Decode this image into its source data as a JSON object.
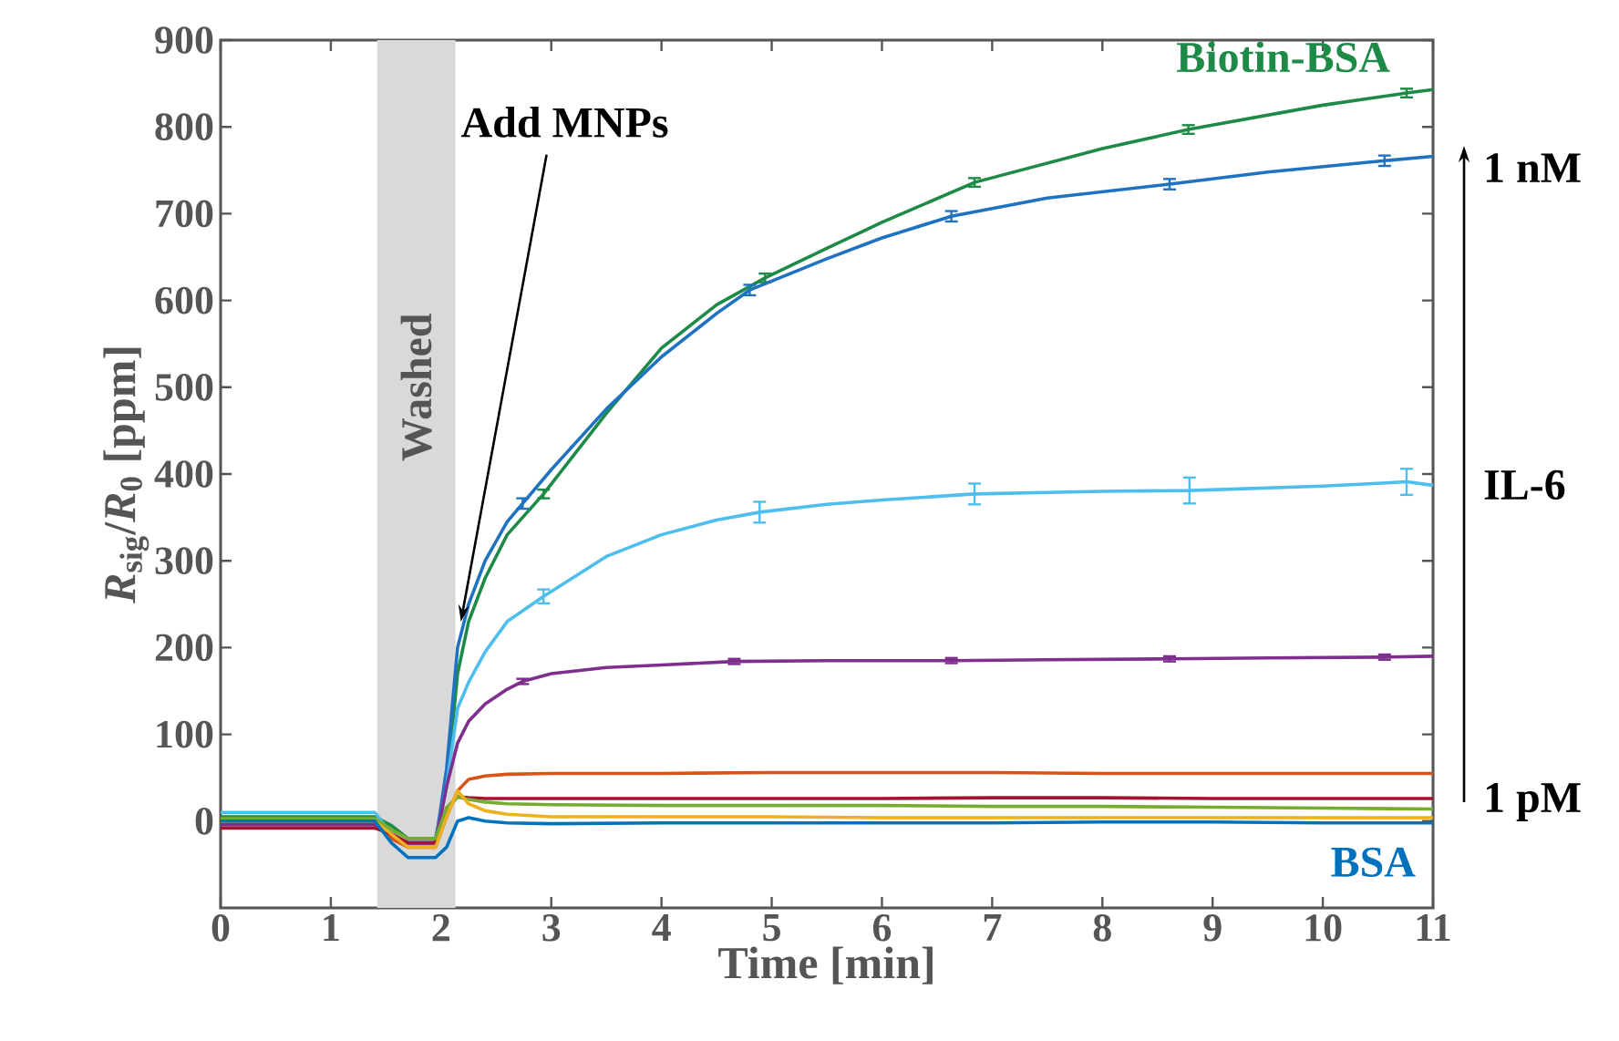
{
  "chart_data": {
    "type": "line",
    "xlabel": "Time [min]",
    "ylabel": "*R*$_{sig}$/*R*$_{0}$ [ppm]",
    "xlim": [
      0,
      11
    ],
    "ylim": [
      -100,
      900
    ],
    "xticks": [
      0,
      1,
      2,
      3,
      4,
      5,
      6,
      7,
      8,
      9,
      10,
      11
    ],
    "yticks": [
      0,
      100,
      200,
      300,
      400,
      500,
      600,
      700,
      800,
      900
    ],
    "grid": false,
    "legend": false,
    "marker": "none",
    "line_style": "solid",
    "bands": [
      {
        "axis": "x",
        "from": 1.42,
        "to": 2.13,
        "label": "Washed",
        "color": "#d9d9d9"
      }
    ],
    "annotations": [
      {
        "text": "Add MNPs",
        "x": 2.18,
        "y": 230
      },
      "1 nM",
      "IL-6",
      "1 pM"
    ],
    "series": [
      {
        "name": "Biotin-BSA",
        "color": "#1e8a47",
        "x": [
          0,
          1,
          1.4,
          1.55,
          1.7,
          1.95,
          2.05,
          2.15,
          2.25,
          2.4,
          2.6,
          2.93,
          3.5,
          4,
          4.5,
          4.94,
          5.5,
          6,
          6.84,
          8,
          8.78,
          10,
          10.76,
          11
        ],
        "values": [
          5,
          5,
          5,
          -5,
          -20,
          -20,
          40,
          170,
          230,
          280,
          330,
          377,
          470,
          545,
          595,
          626,
          660,
          690,
          736,
          775,
          797,
          825,
          839,
          843
        ],
        "errors": [
          null,
          null,
          null,
          null,
          null,
          null,
          null,
          null,
          null,
          null,
          null,
          5,
          null,
          null,
          null,
          5,
          null,
          null,
          5,
          null,
          5,
          null,
          5,
          null
        ]
      },
      {
        "color": "#1f72c0",
        "x": [
          0,
          1,
          1.4,
          1.55,
          1.7,
          1.95,
          2.05,
          2.15,
          2.25,
          2.4,
          2.6,
          2.74,
          3,
          3.5,
          4,
          4.5,
          4.8,
          5.5,
          6,
          6.63,
          7.5,
          8.61,
          9.5,
          10.56,
          11
        ],
        "values": [
          0,
          0,
          0,
          -15,
          -25,
          -25,
          60,
          200,
          250,
          300,
          345,
          366,
          405,
          475,
          535,
          585,
          612,
          648,
          672,
          697,
          718,
          734,
          748,
          761,
          766
        ],
        "errors": [
          null,
          null,
          null,
          null,
          null,
          null,
          null,
          null,
          null,
          null,
          null,
          6,
          null,
          null,
          null,
          null,
          6,
          null,
          null,
          6,
          null,
          6,
          null,
          6,
          null
        ]
      },
      {
        "color": "#4dbeee",
        "x": [
          0,
          1,
          1.4,
          1.55,
          1.7,
          1.95,
          2.05,
          2.15,
          2.25,
          2.4,
          2.6,
          2.93,
          3.5,
          4,
          4.5,
          4.89,
          5.5,
          6,
          6.84,
          8,
          8.79,
          10,
          10.76,
          11
        ],
        "values": [
          10,
          10,
          10,
          -15,
          -25,
          -25,
          40,
          130,
          160,
          195,
          230,
          259,
          305,
          330,
          347,
          356,
          365,
          370,
          377,
          380,
          381,
          386,
          391,
          387
        ],
        "errors": [
          null,
          null,
          null,
          null,
          null,
          null,
          null,
          null,
          null,
          null,
          null,
          8,
          null,
          null,
          null,
          12,
          null,
          null,
          12,
          null,
          15,
          null,
          15,
          null
        ]
      },
      {
        "color": "#7e2f8e",
        "x": [
          0,
          1,
          1.4,
          1.55,
          1.7,
          1.95,
          2.05,
          2.15,
          2.25,
          2.4,
          2.6,
          2.74,
          3,
          3.5,
          4,
          4.66,
          5.5,
          6.63,
          7.5,
          8.61,
          9.5,
          10.56,
          11
        ],
        "values": [
          -4,
          -4,
          -4,
          -15,
          -25,
          -25,
          40,
          90,
          115,
          135,
          152,
          161,
          170,
          177,
          180,
          184,
          185,
          185,
          186,
          187,
          188,
          189,
          190
        ],
        "errors": [
          null,
          null,
          null,
          null,
          null,
          null,
          null,
          null,
          null,
          null,
          null,
          3,
          null,
          null,
          null,
          3,
          null,
          3,
          null,
          3,
          null,
          3,
          null
        ]
      },
      {
        "color": "#d95319",
        "x": [
          0,
          1,
          1.4,
          1.55,
          1.7,
          1.95,
          2.05,
          2.15,
          2.25,
          2.4,
          2.6,
          3,
          4,
          5,
          6,
          7,
          8,
          9,
          10,
          11
        ],
        "values": [
          0,
          0,
          0,
          -20,
          -30,
          -30,
          5,
          35,
          48,
          52,
          54,
          55,
          55,
          56,
          56,
          56,
          55,
          55,
          55,
          55
        ]
      },
      {
        "color": "#a2142f",
        "x": [
          0,
          1,
          1.4,
          1.55,
          1.7,
          1.95,
          2.05,
          2.15,
          2.25,
          2.4,
          2.6,
          3,
          4,
          5,
          6,
          7,
          8,
          9,
          10,
          11
        ],
        "values": [
          -8,
          -8,
          -8,
          -15,
          -25,
          -25,
          15,
          28,
          27,
          26,
          26,
          26,
          26,
          26,
          26,
          27,
          27,
          26,
          26,
          26
        ]
      },
      {
        "color": "#77ac30",
        "x": [
          0,
          1,
          1.4,
          1.55,
          1.7,
          1.95,
          2.05,
          2.15,
          2.25,
          2.4,
          2.6,
          3,
          4,
          5,
          6,
          7,
          8,
          9,
          10,
          11
        ],
        "values": [
          3,
          3,
          3,
          -10,
          -20,
          -20,
          15,
          28,
          25,
          22,
          20,
          19,
          18,
          18,
          18,
          17,
          17,
          16,
          15,
          14
        ]
      },
      {
        "color": "#edb120",
        "x": [
          0,
          1,
          1.4,
          1.55,
          1.7,
          1.95,
          2.05,
          2.15,
          2.25,
          2.4,
          2.6,
          3,
          4,
          5,
          6,
          7,
          8,
          9,
          10,
          11
        ],
        "values": [
          0,
          0,
          0,
          -15,
          -30,
          -30,
          5,
          35,
          20,
          12,
          8,
          5,
          5,
          5,
          4,
          4,
          4,
          4,
          4,
          4
        ]
      },
      {
        "name": "BSA",
        "color": "#0072bd",
        "x": [
          0,
          1,
          1.4,
          1.55,
          1.7,
          1.95,
          2.05,
          2.15,
          2.25,
          2.4,
          2.6,
          3,
          4,
          5,
          6,
          7,
          8,
          9,
          10,
          11
        ],
        "values": [
          0,
          0,
          0,
          -25,
          -42,
          -42,
          -30,
          0,
          4,
          0,
          -2,
          -3,
          -2,
          -2,
          -2,
          -2,
          -1,
          -1,
          -2,
          -2
        ]
      }
    ]
  }
}
